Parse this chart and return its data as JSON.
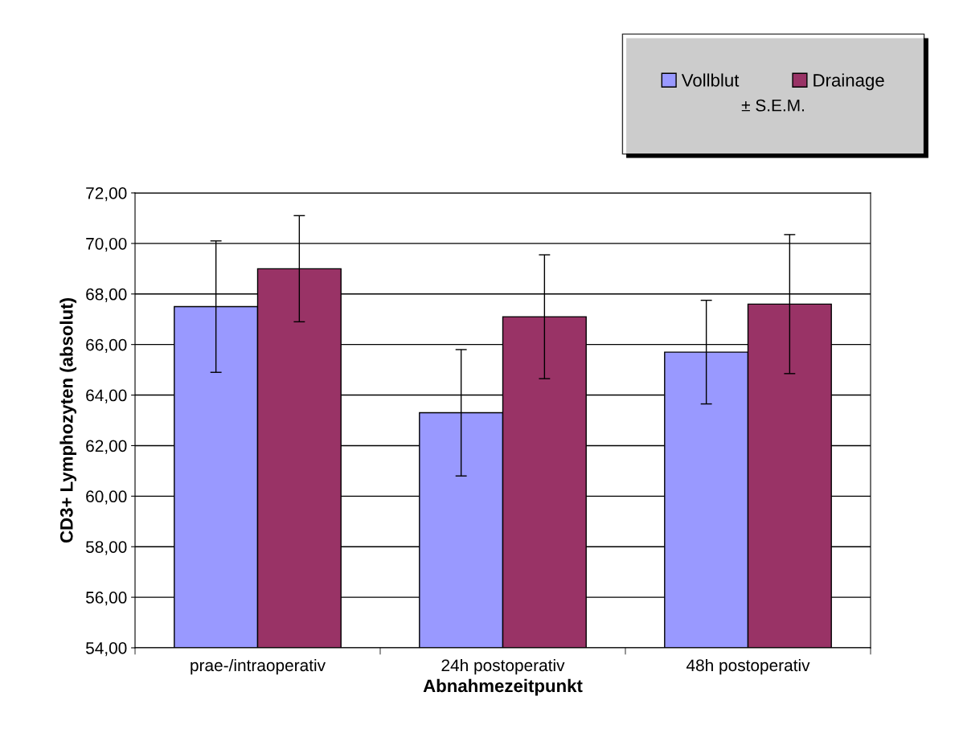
{
  "chart_data": {
    "type": "bar",
    "categories": [
      "prae-/intraoperativ",
      "24h postoperativ",
      "48h postoperativ"
    ],
    "series": [
      {
        "name": "Vollblut",
        "color": "#9999ff",
        "values": [
          67.5,
          63.3,
          65.7
        ],
        "errors": [
          2.6,
          2.5,
          2.05
        ]
      },
      {
        "name": "Drainage",
        "color": "#993366",
        "values": [
          69.0,
          67.1,
          67.6
        ],
        "errors": [
          2.1,
          2.45,
          2.75
        ]
      }
    ],
    "xlabel": "Abnahmezeitpunkt",
    "ylabel": "CD3+ Lymphozyten (absolut)",
    "legend_title": "± S.E.M.",
    "ylim": [
      54,
      72
    ],
    "yticks": [
      {
        "value": 54,
        "label": "54,00"
      },
      {
        "value": 56,
        "label": "56,00"
      },
      {
        "value": 58,
        "label": "58,00"
      },
      {
        "value": 60,
        "label": "60,00"
      },
      {
        "value": 62,
        "label": "62,00"
      },
      {
        "value": 64,
        "label": "64,00"
      },
      {
        "value": 66,
        "label": "66,00"
      },
      {
        "value": 68,
        "label": "68,00"
      },
      {
        "value": 70,
        "label": "70,00"
      },
      {
        "value": 72,
        "label": "72,00"
      }
    ],
    "grid": "y",
    "legend": "top right"
  }
}
